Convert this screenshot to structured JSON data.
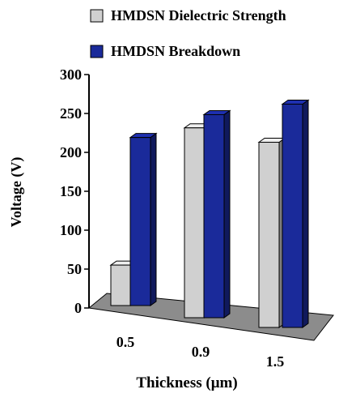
{
  "chart_data": {
    "type": "bar",
    "title": "",
    "xlabel": "Thickness (μm)",
    "ylabel": "Voltage (V)",
    "categories": [
      "0.5",
      "0.9",
      "1.5"
    ],
    "series": [
      {
        "name": "HMDSN Dielectric Strength",
        "values": [
          52,
          244,
          238
        ],
        "color": "#d0d0d0"
      },
      {
        "name": "HMDSN Breakdown",
        "values": [
          216,
          261,
          287
        ],
        "color": "#1a2a9a"
      }
    ],
    "ylim": [
      0,
      300
    ],
    "yticks": [
      "0",
      "50",
      "100",
      "150",
      "200",
      "250",
      "300"
    ],
    "grid": false,
    "legend_position": "top",
    "style": "3d-bar"
  }
}
